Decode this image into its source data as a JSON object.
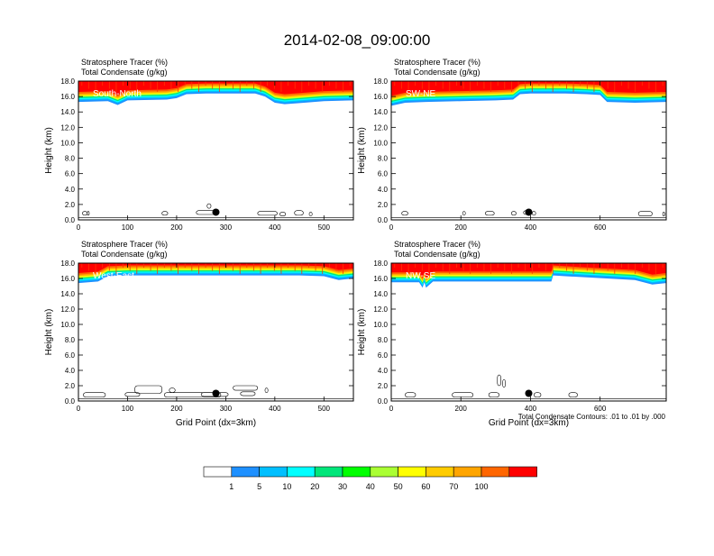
{
  "title": "2014-02-08_09:00:00",
  "footnote": "Total Condensate Contours: .01 to .01 by .000",
  "colors": {
    "levels": [
      "#ffffff",
      "#1e90ff",
      "#00bfff",
      "#00ffff",
      "#00e67a",
      "#00ff00",
      "#aaff33",
      "#ffff00",
      "#ffcc00",
      "#ffa500",
      "#ff6600",
      "#ff0000"
    ]
  },
  "colorbar": {
    "labels": [
      "1",
      "5",
      "10",
      "20",
      "30",
      "40",
      "50",
      "60",
      "70",
      "100"
    ],
    "values": [
      1,
      5,
      10,
      20,
      30,
      40,
      50,
      60,
      70,
      100
    ]
  },
  "chart_data": [
    {
      "type": "area",
      "label": "South-North",
      "header_lines": [
        "Stratosphere Tracer   (%)",
        "Total Condensate   (g/kg)"
      ],
      "ylabel": "Height (km)",
      "xlabel": "",
      "xlim": [
        0,
        560
      ],
      "ylim": [
        0,
        18
      ],
      "xticks": [
        0,
        100,
        200,
        300,
        400,
        500
      ],
      "yticks": [
        0.0,
        2.0,
        4.0,
        6.0,
        8.0,
        10.0,
        12.0,
        14.0,
        16.0,
        18.0
      ],
      "ytick_labels": [
        "0.0",
        "2.0",
        "4.0",
        "6.0",
        "8.0",
        "10.0",
        "12.0",
        "14.0",
        "16.0",
        "18.0"
      ],
      "tracer_base_km": {
        "x": [
          0,
          60,
          80,
          100,
          180,
          200,
          220,
          260,
          300,
          360,
          380,
          400,
          420,
          460,
          500,
          560
        ],
        "y": [
          15.3,
          15.4,
          14.9,
          15.5,
          15.6,
          15.8,
          16.3,
          16.4,
          16.4,
          16.4,
          16.0,
          15.2,
          15.0,
          15.2,
          15.4,
          15.5
        ]
      },
      "marker": {
        "x": 280,
        "y": 1.0
      },
      "condensate_contours": [
        {
          "x": 8,
          "y": 0.6,
          "w": 10,
          "h": 0.5
        },
        {
          "x": 18,
          "y": 0.6,
          "w": 4,
          "h": 0.5
        },
        {
          "x": 170,
          "y": 0.6,
          "w": 12,
          "h": 0.5
        },
        {
          "x": 240,
          "y": 0.7,
          "w": 40,
          "h": 0.5
        },
        {
          "x": 262,
          "y": 1.5,
          "w": 8,
          "h": 0.6
        },
        {
          "x": 365,
          "y": 0.6,
          "w": 40,
          "h": 0.5
        },
        {
          "x": 410,
          "y": 0.5,
          "w": 12,
          "h": 0.5
        },
        {
          "x": 440,
          "y": 0.6,
          "w": 18,
          "h": 0.6
        },
        {
          "x": 470,
          "y": 0.5,
          "w": 6,
          "h": 0.5
        }
      ]
    },
    {
      "type": "area",
      "label": "SW-NE",
      "header_lines": [
        "Stratosphere Tracer   (%)",
        "Total Condensate   (g/kg)"
      ],
      "ylabel": "Height (km)",
      "xlabel": "",
      "xlim": [
        0,
        790
      ],
      "ylim": [
        0,
        18
      ],
      "xticks": [
        0,
        200,
        400,
        600
      ],
      "yticks": [
        0.0,
        2.0,
        4.0,
        6.0,
        8.0,
        10.0,
        12.0,
        14.0,
        16.0,
        18.0
      ],
      "ytick_labels": [
        "0.0",
        "2.0",
        "4.0",
        "6.0",
        "8.0",
        "10.0",
        "12.0",
        "14.0",
        "16.0",
        "18.0"
      ],
      "tracer_base_km": {
        "x": [
          0,
          40,
          100,
          200,
          300,
          350,
          370,
          400,
          500,
          560,
          600,
          620,
          700,
          790
        ],
        "y": [
          14.8,
          15.2,
          15.3,
          15.4,
          15.5,
          15.6,
          16.3,
          16.4,
          16.4,
          16.3,
          16.2,
          15.3,
          15.2,
          15.3
        ]
      },
      "marker": {
        "x": 395,
        "y": 1.0
      },
      "condensate_contours": [
        {
          "x": 30,
          "y": 0.6,
          "w": 18,
          "h": 0.5
        },
        {
          "x": 205,
          "y": 0.6,
          "w": 8,
          "h": 0.5
        },
        {
          "x": 270,
          "y": 0.6,
          "w": 26,
          "h": 0.5
        },
        {
          "x": 345,
          "y": 0.6,
          "w": 14,
          "h": 0.5
        },
        {
          "x": 380,
          "y": 0.7,
          "w": 14,
          "h": 0.5
        },
        {
          "x": 405,
          "y": 0.6,
          "w": 10,
          "h": 0.5
        },
        {
          "x": 710,
          "y": 0.5,
          "w": 40,
          "h": 0.6
        },
        {
          "x": 780,
          "y": 0.5,
          "w": 6,
          "h": 0.5
        }
      ]
    },
    {
      "type": "area",
      "label": "West-East",
      "header_lines": [
        "Stratosphere Tracer   (%)",
        "Total Condensate   (g/kg)"
      ],
      "ylabel": "Height (km)",
      "xlabel": "Grid Point (dx=3km)",
      "xlim": [
        0,
        560
      ],
      "ylim": [
        0,
        18
      ],
      "xticks": [
        0,
        100,
        200,
        300,
        400,
        500
      ],
      "yticks": [
        0.0,
        2.0,
        4.0,
        6.0,
        8.0,
        10.0,
        12.0,
        14.0,
        16.0,
        18.0
      ],
      "ytick_labels": [
        "0.0",
        "2.0",
        "4.0",
        "6.0",
        "8.0",
        "10.0",
        "12.0",
        "14.0",
        "16.0",
        "18.0"
      ],
      "tracer_base_km": {
        "x": [
          0,
          40,
          60,
          100,
          200,
          300,
          400,
          450,
          500,
          530,
          560
        ],
        "y": [
          15.4,
          15.6,
          16.3,
          16.4,
          16.4,
          16.4,
          16.4,
          16.4,
          16.3,
          15.8,
          16.0
        ]
      },
      "marker": {
        "x": 280,
        "y": 1.0
      },
      "condensate_contours": [
        {
          "x": 10,
          "y": 0.5,
          "w": 45,
          "h": 0.6
        },
        {
          "x": 95,
          "y": 0.6,
          "w": 30,
          "h": 0.5
        },
        {
          "x": 115,
          "y": 1.0,
          "w": 55,
          "h": 1.0
        },
        {
          "x": 175,
          "y": 0.5,
          "w": 115,
          "h": 0.6
        },
        {
          "x": 185,
          "y": 1.1,
          "w": 12,
          "h": 0.6
        },
        {
          "x": 250,
          "y": 0.6,
          "w": 55,
          "h": 0.5
        },
        {
          "x": 315,
          "y": 1.4,
          "w": 50,
          "h": 0.6
        },
        {
          "x": 330,
          "y": 0.7,
          "w": 30,
          "h": 0.5
        },
        {
          "x": 380,
          "y": 1.1,
          "w": 6,
          "h": 0.6
        }
      ]
    },
    {
      "type": "area",
      "label": "NW-SE",
      "header_lines": [
        "Stratosphere Tracer   (%)",
        "Total Condensate   (g/kg)"
      ],
      "ylabel": "Height (km)",
      "xlabel": "Grid Point (dx=3km)",
      "xlim": [
        0,
        790
      ],
      "ylim": [
        0,
        18
      ],
      "xticks": [
        0,
        200,
        400,
        600
      ],
      "yticks": [
        0.0,
        2.0,
        4.0,
        6.0,
        8.0,
        10.0,
        12.0,
        14.0,
        16.0,
        18.0
      ],
      "ytick_labels": [
        "0.0",
        "2.0",
        "4.0",
        "6.0",
        "8.0",
        "10.0",
        "12.0",
        "14.0",
        "16.0",
        "18.0"
      ],
      "tracer_base_km": {
        "x": [
          0,
          80,
          90,
          95,
          100,
          120,
          200,
          300,
          460,
          465,
          500,
          700,
          750,
          790
        ],
        "y": [
          15.5,
          15.5,
          14.8,
          15.5,
          14.8,
          15.6,
          15.6,
          15.6,
          15.6,
          16.4,
          16.3,
          15.8,
          15.2,
          15.4
        ]
      },
      "marker": {
        "x": 395,
        "y": 1.0
      },
      "condensate_contours": [
        {
          "x": 40,
          "y": 0.5,
          "w": 30,
          "h": 0.6
        },
        {
          "x": 175,
          "y": 0.5,
          "w": 60,
          "h": 0.6
        },
        {
          "x": 280,
          "y": 0.5,
          "w": 30,
          "h": 0.6
        },
        {
          "x": 305,
          "y": 2.0,
          "w": 10,
          "h": 1.4
        },
        {
          "x": 320,
          "y": 1.8,
          "w": 8,
          "h": 1.0
        },
        {
          "x": 410,
          "y": 0.5,
          "w": 20,
          "h": 0.6
        },
        {
          "x": 510,
          "y": 0.5,
          "w": 25,
          "h": 0.6
        }
      ]
    }
  ]
}
